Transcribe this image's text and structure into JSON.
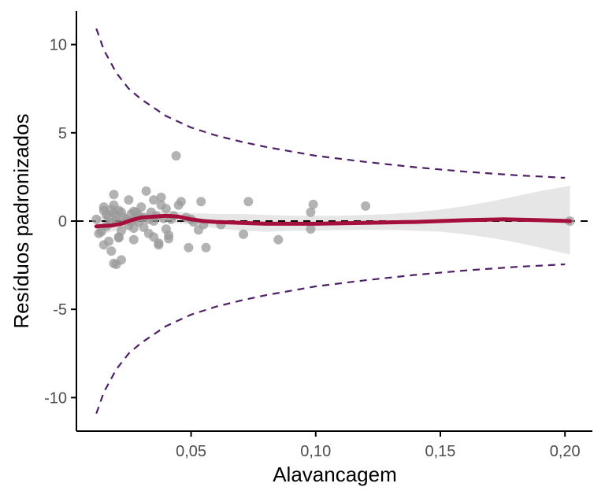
{
  "chart_data": {
    "type": "scatter",
    "title": "",
    "xlabel": "Alavancagem",
    "ylabel": "Resíduos padronizados",
    "xlim": [
      0.004,
      0.211
    ],
    "ylim": [
      -11.9,
      11.9
    ],
    "x_ticks": [
      {
        "value": 0.05,
        "label": "0,05"
      },
      {
        "value": 0.1,
        "label": "0,10"
      },
      {
        "value": 0.15,
        "label": "0,15"
      },
      {
        "value": 0.2,
        "label": "0,20"
      }
    ],
    "y_ticks": [
      {
        "value": 10,
        "label": "10"
      },
      {
        "value": 5,
        "label": "5"
      },
      {
        "value": 0,
        "label": "0"
      },
      {
        "value": -5,
        "label": "-5"
      },
      {
        "value": -10,
        "label": "-10"
      }
    ],
    "grid": false,
    "legend": "none",
    "colors": {
      "points": "#999999",
      "smooth": "#a50f3c",
      "band": "#e6e6e6",
      "bounds": "#4f1f66",
      "zero_line": "#000000"
    },
    "points": [
      {
        "x": 0.012,
        "y": 0.1
      },
      {
        "x": 0.013,
        "y": -0.7
      },
      {
        "x": 0.014,
        "y": -0.6
      },
      {
        "x": 0.015,
        "y": 0.8
      },
      {
        "x": 0.015,
        "y": 0.6
      },
      {
        "x": 0.015,
        "y": -1.35
      },
      {
        "x": 0.016,
        "y": 0.35
      },
      {
        "x": 0.016,
        "y": -0.3
      },
      {
        "x": 0.017,
        "y": 0.2
      },
      {
        "x": 0.017,
        "y": -1.15
      },
      {
        "x": 0.018,
        "y": 0.65
      },
      {
        "x": 0.018,
        "y": -0.1
      },
      {
        "x": 0.018,
        "y": -1.7
      },
      {
        "x": 0.019,
        "y": 1.5
      },
      {
        "x": 0.019,
        "y": 0.9
      },
      {
        "x": 0.019,
        "y": 0.45
      },
      {
        "x": 0.019,
        "y": -2.4
      },
      {
        "x": 0.02,
        "y": 0.3
      },
      {
        "x": 0.02,
        "y": 0.0
      },
      {
        "x": 0.02,
        "y": -2.45
      },
      {
        "x": 0.021,
        "y": 0.6
      },
      {
        "x": 0.021,
        "y": -0.9
      },
      {
        "x": 0.021,
        "y": -0.95
      },
      {
        "x": 0.022,
        "y": 0.5
      },
      {
        "x": 0.022,
        "y": -2.2
      },
      {
        "x": 0.022,
        "y": -0.55
      },
      {
        "x": 0.023,
        "y": 0.2
      },
      {
        "x": 0.024,
        "y": 0.1
      },
      {
        "x": 0.025,
        "y": -0.25
      },
      {
        "x": 0.025,
        "y": 1.2
      },
      {
        "x": 0.026,
        "y": 0.4
      },
      {
        "x": 0.026,
        "y": 0.0
      },
      {
        "x": 0.027,
        "y": -0.4
      },
      {
        "x": 0.027,
        "y": 0.55
      },
      {
        "x": 0.027,
        "y": -1.05
      },
      {
        "x": 0.028,
        "y": 0.15
      },
      {
        "x": 0.028,
        "y": 0.5
      },
      {
        "x": 0.029,
        "y": 0.3
      },
      {
        "x": 0.029,
        "y": -0.05
      },
      {
        "x": 0.03,
        "y": 0.8
      },
      {
        "x": 0.031,
        "y": 0.2
      },
      {
        "x": 0.031,
        "y": -0.35
      },
      {
        "x": 0.032,
        "y": 1.7
      },
      {
        "x": 0.033,
        "y": 0.1
      },
      {
        "x": 0.033,
        "y": -0.7
      },
      {
        "x": 0.034,
        "y": 0.5
      },
      {
        "x": 0.035,
        "y": -0.9
      },
      {
        "x": 0.035,
        "y": 1.2
      },
      {
        "x": 0.035,
        "y": 0.0
      },
      {
        "x": 0.036,
        "y": 0.3
      },
      {
        "x": 0.037,
        "y": -1.25
      },
      {
        "x": 0.037,
        "y": -1.35
      },
      {
        "x": 0.038,
        "y": 1.35
      },
      {
        "x": 0.038,
        "y": 0.9
      },
      {
        "x": 0.039,
        "y": 0.15
      },
      {
        "x": 0.04,
        "y": -0.45
      },
      {
        "x": 0.04,
        "y": 0.7
      },
      {
        "x": 0.041,
        "y": -0.8
      },
      {
        "x": 0.041,
        "y": -1.0
      },
      {
        "x": 0.042,
        "y": 0.1
      },
      {
        "x": 0.043,
        "y": 0.3
      },
      {
        "x": 0.044,
        "y": 3.7
      },
      {
        "x": 0.045,
        "y": 0.9
      },
      {
        "x": 0.046,
        "y": 1.1
      },
      {
        "x": 0.048,
        "y": 0.2
      },
      {
        "x": 0.049,
        "y": -1.5
      },
      {
        "x": 0.05,
        "y": 0.1
      },
      {
        "x": 0.051,
        "y": -0.05
      },
      {
        "x": 0.053,
        "y": -0.5
      },
      {
        "x": 0.054,
        "y": 1.1
      },
      {
        "x": 0.055,
        "y": -0.2
      },
      {
        "x": 0.056,
        "y": -1.5
      },
      {
        "x": 0.062,
        "y": -0.2
      },
      {
        "x": 0.071,
        "y": -0.75
      },
      {
        "x": 0.073,
        "y": 1.1
      },
      {
        "x": 0.085,
        "y": -1.05
      },
      {
        "x": 0.098,
        "y": 0.5
      },
      {
        "x": 0.098,
        "y": -0.45
      },
      {
        "x": 0.099,
        "y": 0.95
      },
      {
        "x": 0.12,
        "y": 0.85
      },
      {
        "x": 0.202,
        "y": 0.0
      }
    ],
    "smooth": [
      {
        "x": 0.012,
        "y": -0.3
      },
      {
        "x": 0.018,
        "y": -0.25
      },
      {
        "x": 0.022,
        "y": -0.15
      },
      {
        "x": 0.026,
        "y": 0.05
      },
      {
        "x": 0.03,
        "y": 0.2
      },
      {
        "x": 0.035,
        "y": 0.25
      },
      {
        "x": 0.04,
        "y": 0.3
      },
      {
        "x": 0.045,
        "y": 0.25
      },
      {
        "x": 0.05,
        "y": 0.1
      },
      {
        "x": 0.055,
        "y": 0.0
      },
      {
        "x": 0.06,
        "y": -0.05
      },
      {
        "x": 0.07,
        "y": -0.1
      },
      {
        "x": 0.08,
        "y": -0.15
      },
      {
        "x": 0.09,
        "y": -0.15
      },
      {
        "x": 0.1,
        "y": -0.15
      },
      {
        "x": 0.12,
        "y": -0.1
      },
      {
        "x": 0.14,
        "y": -0.05
      },
      {
        "x": 0.16,
        "y": 0.05
      },
      {
        "x": 0.175,
        "y": 0.1
      },
      {
        "x": 0.19,
        "y": 0.05
      },
      {
        "x": 0.202,
        "y": 0.0
      }
    ],
    "confidence_band": [
      {
        "x": 0.012,
        "lower": -0.8,
        "upper": 0.3
      },
      {
        "x": 0.02,
        "lower": -0.55,
        "upper": 0.1
      },
      {
        "x": 0.03,
        "lower": -0.1,
        "upper": 0.5
      },
      {
        "x": 0.04,
        "lower": -0.05,
        "upper": 0.6
      },
      {
        "x": 0.05,
        "lower": -0.2,
        "upper": 0.45
      },
      {
        "x": 0.06,
        "lower": -0.4,
        "upper": 0.4
      },
      {
        "x": 0.07,
        "lower": -0.55,
        "upper": 0.4
      },
      {
        "x": 0.08,
        "lower": -0.6,
        "upper": 0.35
      },
      {
        "x": 0.09,
        "lower": -0.55,
        "upper": 0.3
      },
      {
        "x": 0.1,
        "lower": -0.55,
        "upper": 0.3
      },
      {
        "x": 0.11,
        "lower": -0.5,
        "upper": 0.3
      },
      {
        "x": 0.12,
        "lower": -0.5,
        "upper": 0.35
      },
      {
        "x": 0.13,
        "lower": -0.5,
        "upper": 0.4
      },
      {
        "x": 0.14,
        "lower": -0.55,
        "upper": 0.5
      },
      {
        "x": 0.15,
        "lower": -0.6,
        "upper": 0.65
      },
      {
        "x": 0.16,
        "lower": -0.75,
        "upper": 0.85
      },
      {
        "x": 0.17,
        "lower": -0.95,
        "upper": 1.1
      },
      {
        "x": 0.18,
        "lower": -1.2,
        "upper": 1.4
      },
      {
        "x": 0.19,
        "lower": -1.5,
        "upper": 1.7
      },
      {
        "x": 0.202,
        "lower": -1.9,
        "upper": 2.0
      }
    ],
    "cook_distance_bounds": {
      "upper": [
        {
          "x": 0.012,
          "y": 10.9
        },
        {
          "x": 0.015,
          "y": 9.7
        },
        {
          "x": 0.02,
          "y": 8.4
        },
        {
          "x": 0.025,
          "y": 7.5
        },
        {
          "x": 0.03,
          "y": 6.9
        },
        {
          "x": 0.04,
          "y": 5.95
        },
        {
          "x": 0.05,
          "y": 5.3
        },
        {
          "x": 0.06,
          "y": 4.85
        },
        {
          "x": 0.07,
          "y": 4.5
        },
        {
          "x": 0.08,
          "y": 4.2
        },
        {
          "x": 0.09,
          "y": 3.95
        },
        {
          "x": 0.1,
          "y": 3.7
        },
        {
          "x": 0.12,
          "y": 3.35
        },
        {
          "x": 0.14,
          "y": 3.05
        },
        {
          "x": 0.16,
          "y": 2.8
        },
        {
          "x": 0.18,
          "y": 2.6
        },
        {
          "x": 0.2,
          "y": 2.45
        }
      ],
      "lower": [
        {
          "x": 0.012,
          "y": -10.9
        },
        {
          "x": 0.015,
          "y": -9.7
        },
        {
          "x": 0.02,
          "y": -8.4
        },
        {
          "x": 0.025,
          "y": -7.5
        },
        {
          "x": 0.03,
          "y": -6.9
        },
        {
          "x": 0.04,
          "y": -5.95
        },
        {
          "x": 0.05,
          "y": -5.3
        },
        {
          "x": 0.06,
          "y": -4.85
        },
        {
          "x": 0.07,
          "y": -4.5
        },
        {
          "x": 0.08,
          "y": -4.2
        },
        {
          "x": 0.09,
          "y": -3.95
        },
        {
          "x": 0.1,
          "y": -3.7
        },
        {
          "x": 0.12,
          "y": -3.35
        },
        {
          "x": 0.14,
          "y": -3.05
        },
        {
          "x": 0.16,
          "y": -2.8
        },
        {
          "x": 0.18,
          "y": -2.6
        },
        {
          "x": 0.2,
          "y": -2.45
        }
      ]
    },
    "reference_line": {
      "y": 0
    }
  }
}
